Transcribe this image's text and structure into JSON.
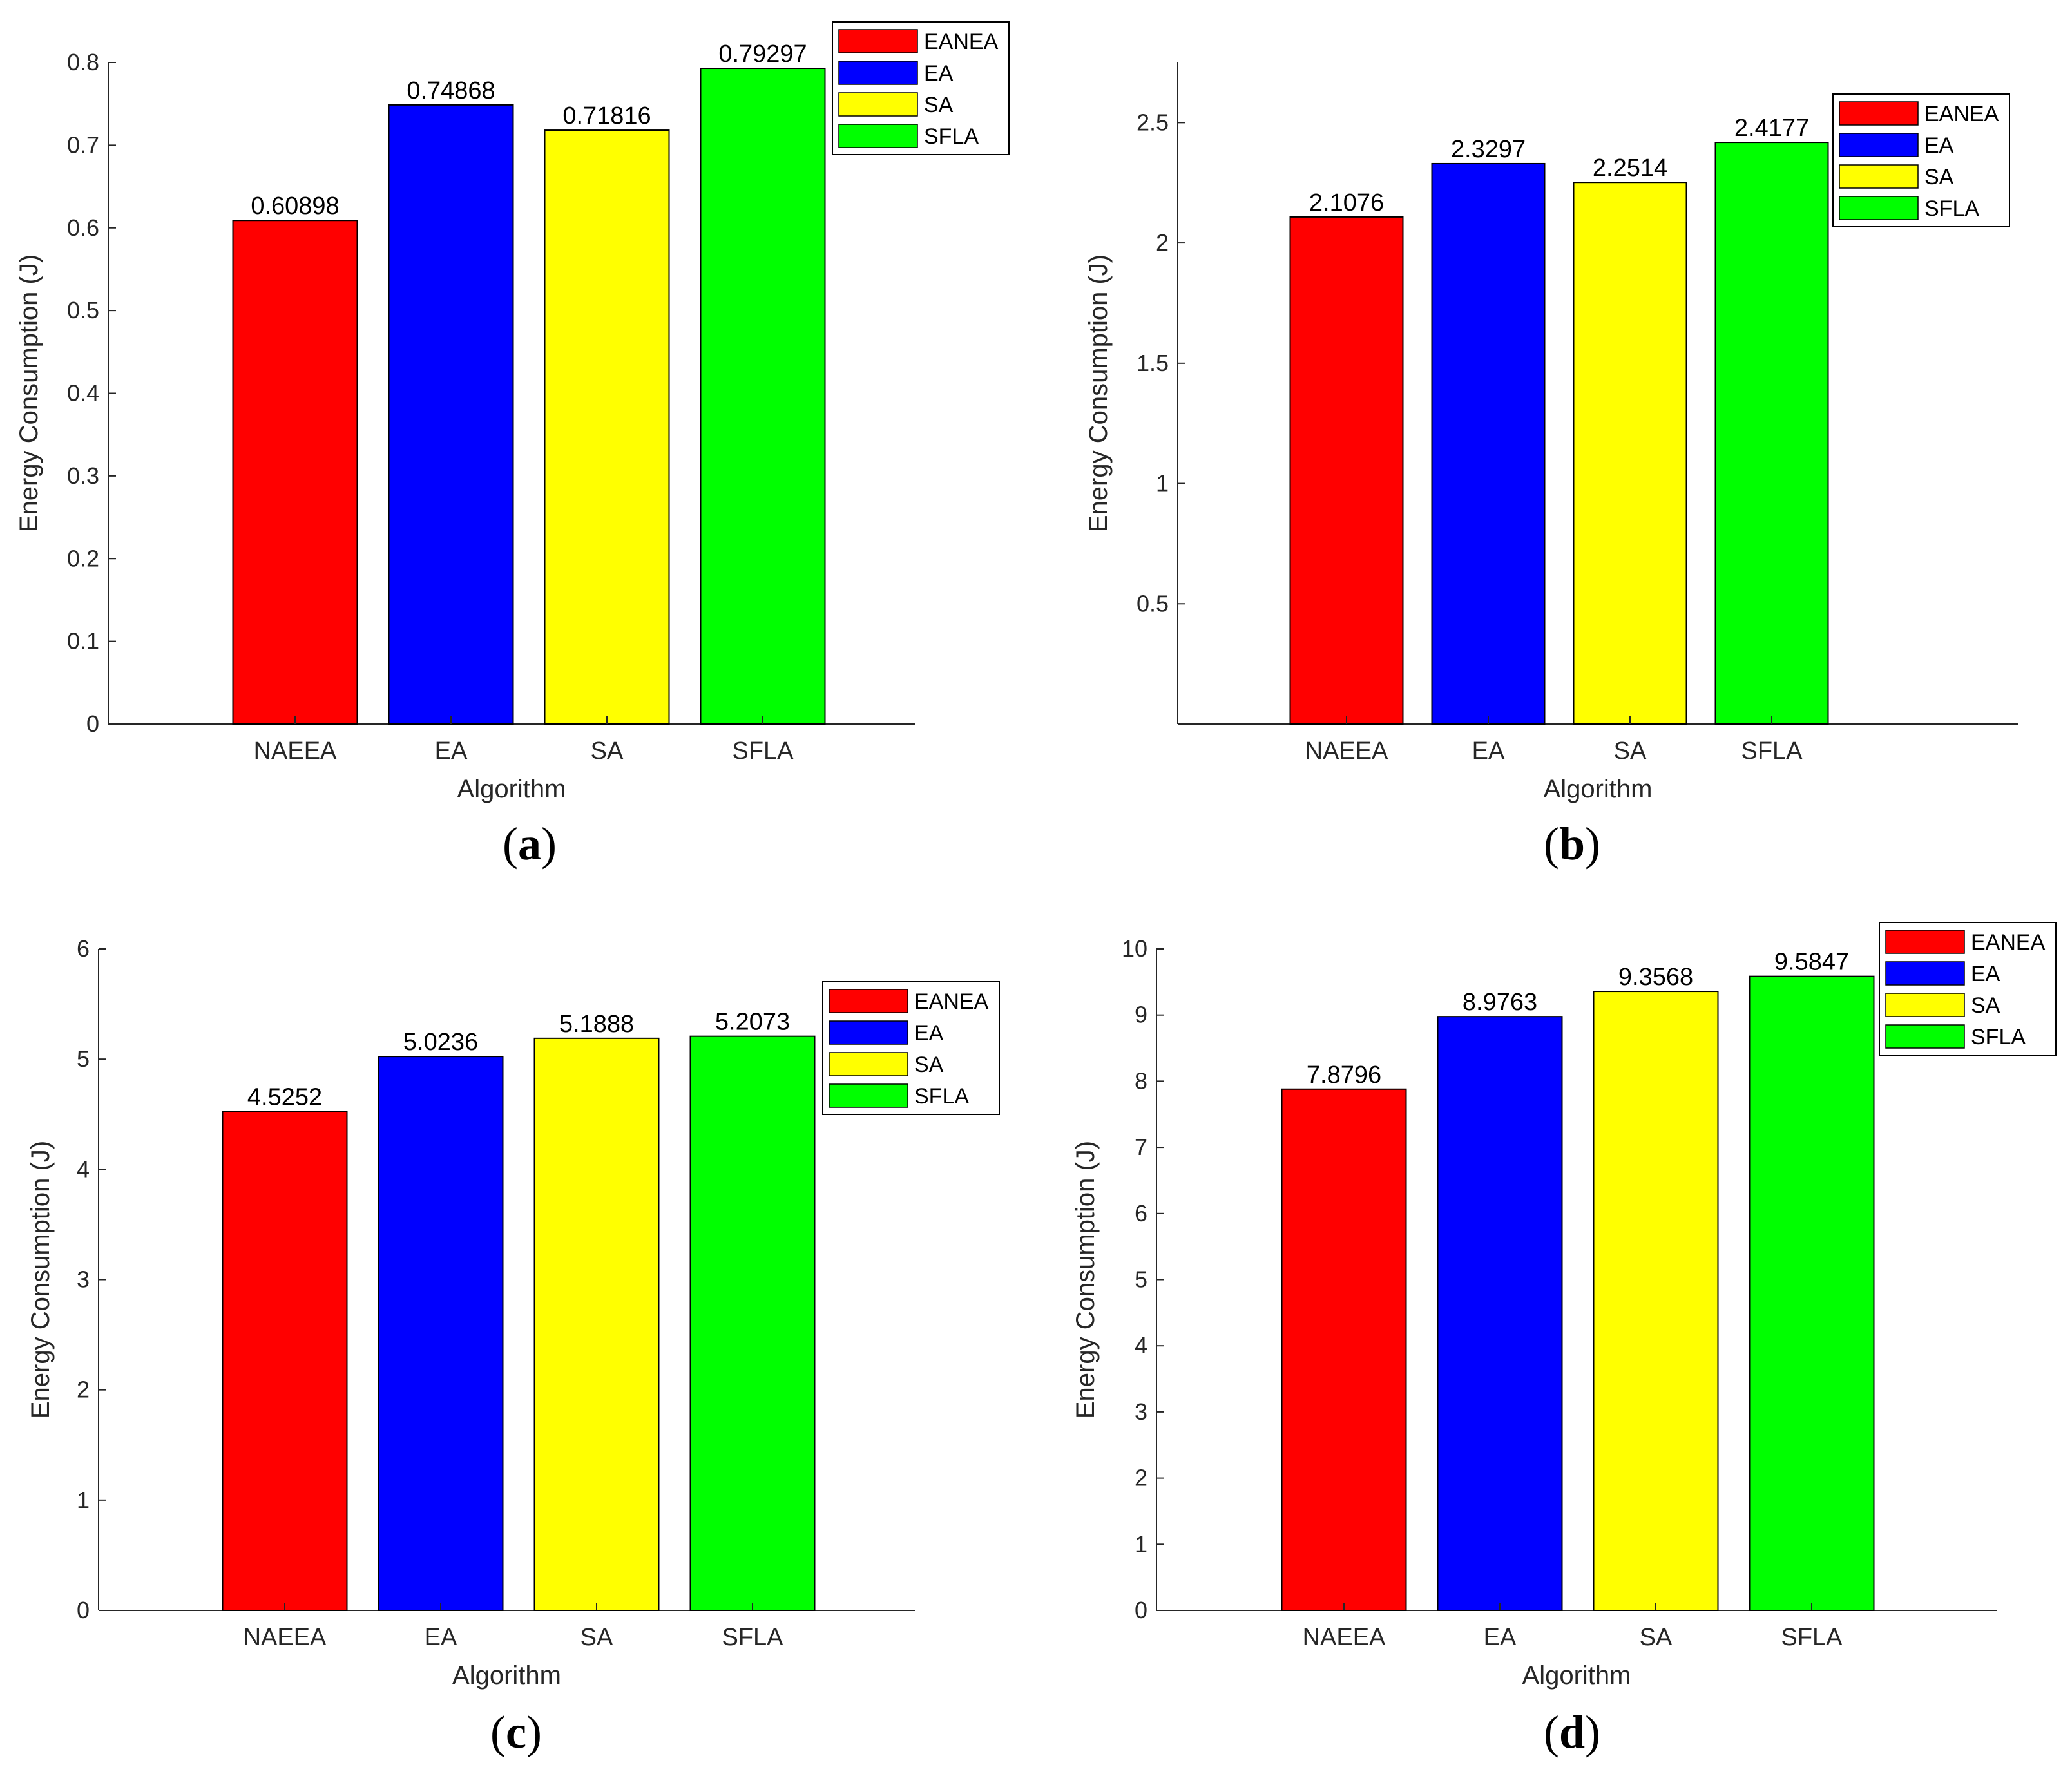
{
  "chart_data": [
    {
      "panel": "a",
      "type": "bar",
      "categories": [
        "NAEEA",
        "EA",
        "SA",
        "SFLA"
      ],
      "values": [
        0.60898,
        0.74868,
        0.71816,
        0.79297
      ],
      "value_labels": [
        "0.60898",
        "0.74868",
        "0.71816",
        "0.79297"
      ],
      "colors": [
        "#ff0000",
        "#0000ff",
        "#ffff00",
        "#00ff00"
      ],
      "legend": [
        "EANEA",
        "EA",
        "SA",
        "SFLA"
      ],
      "legend_position": "top-right",
      "xlabel": "Algorithm",
      "ylabel": "Energy Consumption (J)",
      "ylim": [
        0,
        0.8
      ],
      "yticks": [
        0,
        0.1,
        0.2,
        0.3,
        0.4,
        0.5,
        0.6,
        0.7,
        0.8
      ],
      "ytick_labels": [
        "0",
        "0.1",
        "0.2",
        "0.3",
        "0.4",
        "0.5",
        "0.6",
        "0.7",
        "0.8"
      ],
      "grid": false,
      "caption_letter": "a"
    },
    {
      "panel": "b",
      "type": "bar",
      "categories": [
        "NAEEA",
        "EA",
        "SA",
        "SFLA"
      ],
      "values": [
        2.1076,
        2.3297,
        2.2514,
        2.4177
      ],
      "value_labels": [
        "2.1076",
        "2.3297",
        "2.2514",
        "2.4177"
      ],
      "colors": [
        "#ff0000",
        "#0000ff",
        "#ffff00",
        "#00ff00"
      ],
      "legend": [
        "EANEA",
        "EA",
        "SA",
        "SFLA"
      ],
      "legend_position": "top-right",
      "xlabel": "Algorithm",
      "ylabel": "Energy Consumption (J)",
      "ylim": [
        0,
        2.75
      ],
      "yticks": [
        0.5,
        1,
        1.5,
        2,
        2.5
      ],
      "ytick_labels": [
        "0.5",
        "1",
        "1.5",
        "2",
        "2.5"
      ],
      "grid": false,
      "caption_letter": "b"
    },
    {
      "panel": "c",
      "type": "bar",
      "categories": [
        "NAEEA",
        "EA",
        "SA",
        "SFLA"
      ],
      "values": [
        4.5252,
        5.0236,
        5.1888,
        5.2073
      ],
      "value_labels": [
        "4.5252",
        "5.0236",
        "5.1888",
        "5.2073"
      ],
      "colors": [
        "#ff0000",
        "#0000ff",
        "#ffff00",
        "#00ff00"
      ],
      "legend": [
        "EANEA",
        "EA",
        "SA",
        "SFLA"
      ],
      "legend_position": "top-right",
      "xlabel": "Algorithm",
      "ylabel": "Energy Consumption (J)",
      "ylim": [
        0,
        6
      ],
      "yticks": [
        0,
        1,
        2,
        3,
        4,
        5,
        6
      ],
      "ytick_labels": [
        "0",
        "1",
        "2",
        "3",
        "4",
        "5",
        "6"
      ],
      "grid": false,
      "caption_letter": "c"
    },
    {
      "panel": "d",
      "type": "bar",
      "categories": [
        "NAEEA",
        "EA",
        "SA",
        "SFLA"
      ],
      "values": [
        7.8796,
        8.9763,
        9.3568,
        9.5847
      ],
      "value_labels": [
        "7.8796",
        "8.9763",
        "9.3568",
        "9.5847"
      ],
      "colors": [
        "#ff0000",
        "#0000ff",
        "#ffff00",
        "#00ff00"
      ],
      "legend": [
        "EANEA",
        "EA",
        "SA",
        "SFLA"
      ],
      "legend_position": "top-right",
      "xlabel": "Algorithm",
      "ylabel": "Energy Consumption (J)",
      "ylim": [
        0,
        10
      ],
      "yticks": [
        0,
        1,
        2,
        3,
        4,
        5,
        6,
        7,
        8,
        9,
        10
      ],
      "ytick_labels": [
        "0",
        "1",
        "2",
        "3",
        "4",
        "5",
        "6",
        "7",
        "8",
        "9",
        "10"
      ],
      "grid": false,
      "caption_letter": "d"
    }
  ]
}
